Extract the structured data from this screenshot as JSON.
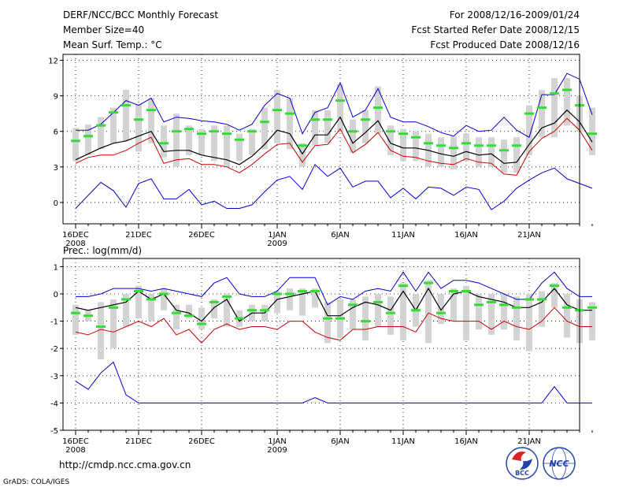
{
  "header": {
    "title": "DERF/NCC/BCC Monthly Forecast",
    "member_size": "Member Size=40",
    "variable": "Mean Surf. Temp.: °C",
    "period": "For 2008/12/16-2009/01/24",
    "fcst_started": "Fcst Started Refer Date 2008/12/15",
    "fcst_produced": "Fcst Produced Date 2008/12/16"
  },
  "precip_label": "Prec.: log(mm/d)",
  "footer": {
    "url": "http://cmdp.ncc.cma.gov.cn",
    "credit": "GrADS: COLA/IGES",
    "logo_bcc": "BCC",
    "logo_ncc": "NCC"
  },
  "colors": {
    "max": "#0000cc",
    "min": "#cc0000",
    "mean": "#000000",
    "spread": "#d3d3d3",
    "obs": "#33dd33"
  },
  "chart_data": [
    {
      "type": "line",
      "title": "Mean Surf. Temp.: °C",
      "x_labels": [
        {
          "day": 0,
          "label": "16DEC",
          "sub": "2008"
        },
        {
          "day": 5,
          "label": "21DEC",
          "sub": ""
        },
        {
          "day": 10,
          "label": "26DEC",
          "sub": ""
        },
        {
          "day": 16,
          "label": "1JAN",
          "sub": "2009"
        },
        {
          "day": 21,
          "label": "6JAN",
          "sub": ""
        },
        {
          "day": 26,
          "label": "11JAN",
          "sub": ""
        },
        {
          "day": 31,
          "label": "16JAN",
          "sub": ""
        },
        {
          "day": 36,
          "label": "21JAN",
          "sub": ""
        }
      ],
      "xlim": [
        -1,
        40
      ],
      "ylim": [
        -1.8,
        12.5
      ],
      "yticks": [
        0,
        3,
        6,
        9,
        12
      ],
      "grid": true,
      "series": [
        {
          "name": "max",
          "values": [
            6.1,
            6.1,
            6.6,
            7.6,
            8.6,
            8.2,
            8.8,
            6.8,
            7.2,
            7.1,
            6.9,
            6.8,
            6.6,
            6.1,
            6.6,
            8.2,
            9.2,
            8.8,
            5.8,
            7.6,
            8.0,
            10.1,
            7.2,
            7.8,
            9.6,
            7.2,
            6.8,
            6.8,
            6.4,
            5.9,
            5.6,
            6.5,
            6.0,
            6.1,
            7.2,
            6.1,
            5.5,
            9.1,
            9.1,
            10.9,
            10.4,
            7.4
          ]
        },
        {
          "name": "min",
          "values": [
            3.3,
            3.8,
            4.0,
            4.0,
            4.4,
            5.0,
            5.5,
            3.3,
            3.6,
            3.7,
            3.2,
            3.2,
            3.0,
            2.5,
            3.2,
            4.1,
            4.9,
            5.0,
            3.4,
            4.8,
            4.9,
            6.2,
            4.2,
            4.9,
            5.9,
            4.4,
            3.9,
            3.8,
            3.5,
            3.3,
            3.2,
            3.7,
            3.4,
            3.3,
            2.4,
            2.3,
            4.3,
            5.4,
            6.0,
            7.1,
            6.1,
            4.4
          ]
        },
        {
          "name": "mean",
          "values": [
            3.6,
            4.1,
            4.6,
            5.0,
            5.2,
            5.6,
            6.0,
            4.3,
            4.4,
            4.4,
            4.0,
            3.8,
            3.6,
            3.2,
            3.9,
            4.9,
            6.1,
            5.8,
            4.1,
            5.7,
            5.7,
            7.2,
            5.0,
            5.9,
            6.9,
            5.0,
            4.6,
            4.6,
            4.4,
            4.1,
            3.9,
            4.3,
            4.0,
            4.1,
            3.3,
            3.4,
            4.9,
            6.3,
            6.7,
            7.8,
            6.8,
            5.1
          ]
        },
        {
          "name": "lower",
          "values": [
            -0.5,
            0.6,
            1.7,
            1.0,
            -0.4,
            1.6,
            2.0,
            0.3,
            0.3,
            1.1,
            -0.2,
            0.1,
            -0.5,
            -0.5,
            -0.2,
            0.9,
            1.9,
            2.2,
            1.1,
            3.2,
            2.2,
            2.9,
            1.3,
            1.8,
            1.8,
            0.4,
            1.2,
            0.3,
            1.3,
            1.2,
            0.6,
            1.3,
            1.1,
            -0.6,
            0.1,
            1.2,
            1.9,
            2.5,
            2.9,
            2.0,
            1.6,
            1.2
          ]
        },
        {
          "name": "p25",
          "values": [
            3.5,
            4.0,
            4.5,
            5.0,
            5.2,
            4.3,
            5.0,
            3.8,
            3.0,
            4.0,
            4.0,
            3.5,
            3.0,
            3.5,
            4.0,
            4.5,
            5.0,
            4.5,
            3.0,
            4.8,
            5.0,
            6.0,
            4.2,
            5.0,
            5.8,
            4.0,
            3.5,
            3.5,
            3.0,
            3.0,
            2.8,
            3.5,
            3.0,
            3.0,
            2.5,
            2.5,
            4.0,
            5.5,
            5.5,
            6.5,
            6.0,
            4.0
          ]
        },
        {
          "name": "p75",
          "values": [
            6.3,
            6.6,
            7.2,
            8.0,
            9.5,
            8.3,
            8.8,
            6.5,
            7.5,
            6.5,
            6.2,
            6.5,
            6.5,
            5.8,
            6.2,
            8.0,
            9.5,
            8.8,
            5.0,
            7.8,
            7.8,
            10.0,
            7.0,
            7.8,
            9.8,
            6.5,
            6.2,
            6.0,
            5.8,
            5.5,
            5.6,
            5.8,
            5.5,
            5.5,
            5.3,
            5.5,
            8.2,
            9.5,
            10.5,
            10.5,
            9.0,
            8.0
          ]
        },
        {
          "name": "obs",
          "values": [
            5.2,
            5.6,
            6.5,
            7.6,
            8.2,
            7.0,
            7.8,
            5.0,
            6.0,
            6.2,
            5.8,
            6.0,
            5.8,
            5.3,
            6.0,
            6.8,
            7.8,
            7.5,
            4.8,
            7.0,
            7.0,
            8.6,
            6.0,
            7.0,
            8.0,
            6.0,
            5.8,
            5.5,
            5.0,
            4.8,
            4.6,
            5.0,
            4.8,
            4.8,
            4.4,
            4.8,
            7.5,
            8.0,
            9.2,
            9.5,
            8.2,
            5.8
          ]
        }
      ]
    },
    {
      "type": "line",
      "title": "Prec.: log(mm/d)",
      "x_labels": [
        {
          "day": 0,
          "label": "16DEC",
          "sub": "2008"
        },
        {
          "day": 5,
          "label": "21DEC",
          "sub": ""
        },
        {
          "day": 10,
          "label": "26DEC",
          "sub": ""
        },
        {
          "day": 16,
          "label": "1JAN",
          "sub": "2009"
        },
        {
          "day": 21,
          "label": "6JAN",
          "sub": ""
        },
        {
          "day": 26,
          "label": "11JAN",
          "sub": ""
        },
        {
          "day": 31,
          "label": "16JAN",
          "sub": ""
        },
        {
          "day": 36,
          "label": "21JAN",
          "sub": ""
        }
      ],
      "xlim": [
        -1,
        40
      ],
      "ylim": [
        -5,
        1.3
      ],
      "yticks": [
        -5,
        -4,
        -3,
        -2,
        -1,
        0,
        1
      ],
      "grid": true,
      "series": [
        {
          "name": "max",
          "values": [
            -0.1,
            -0.1,
            0.0,
            0.2,
            0.2,
            0.2,
            0.1,
            0.2,
            0.1,
            0.0,
            -0.1,
            0.4,
            0.6,
            0.0,
            -0.1,
            -0.1,
            0.1,
            0.6,
            0.6,
            0.6,
            -0.4,
            -0.1,
            -0.2,
            0.1,
            0.2,
            0.1,
            0.8,
            0.1,
            0.8,
            0.2,
            0.5,
            0.5,
            0.4,
            0.2,
            0.0,
            -0.2,
            -0.2,
            0.4,
            0.8,
            0.2,
            -0.1,
            -0.1
          ]
        },
        {
          "name": "min",
          "values": [
            -1.4,
            -1.5,
            -1.3,
            -1.4,
            -1.2,
            -1.0,
            -1.2,
            -0.9,
            -1.5,
            -1.3,
            -1.8,
            -1.3,
            -1.1,
            -1.3,
            -1.2,
            -1.2,
            -1.3,
            -1.0,
            -1.0,
            -1.4,
            -1.6,
            -1.7,
            -1.3,
            -1.3,
            -1.2,
            -1.2,
            -1.2,
            -1.4,
            -0.7,
            -0.9,
            -1.0,
            -1.0,
            -1.0,
            -1.3,
            -1.0,
            -1.2,
            -1.3,
            -1.0,
            -0.5,
            -1.0,
            -1.2,
            -1.2
          ]
        },
        {
          "name": "mean",
          "values": [
            -0.5,
            -0.6,
            -0.5,
            -0.4,
            -0.3,
            0.1,
            -0.2,
            0.0,
            -0.6,
            -0.7,
            -1.0,
            -0.5,
            -0.2,
            -1.0,
            -0.7,
            -0.7,
            -0.2,
            -0.1,
            0.0,
            0.1,
            -0.8,
            -0.8,
            -0.5,
            -0.3,
            -0.4,
            -0.6,
            0.1,
            -0.6,
            0.2,
            -0.6,
            0.0,
            0.1,
            -0.1,
            -0.2,
            -0.3,
            -0.5,
            -0.5,
            -0.3,
            0.2,
            -0.4,
            -0.6,
            -0.6
          ]
        },
        {
          "name": "lower",
          "values": [
            -3.2,
            -3.5,
            -2.9,
            -2.5,
            -3.7,
            -4.0,
            -4.0,
            -4.0,
            -4.0,
            -4.0,
            -4.0,
            -4.0,
            -4.0,
            -4.0,
            -4.0,
            -4.0,
            -4.0,
            -4.0,
            -4.0,
            -3.8,
            -4.0,
            -4.0,
            -4.0,
            -4.0,
            -4.0,
            -4.0,
            -4.0,
            -4.0,
            -4.0,
            -4.0,
            -4.0,
            -4.0,
            -4.0,
            -4.0,
            -4.0,
            -4.0,
            -4.0,
            -4.0,
            -3.4,
            -4.0,
            -4.0,
            -4.0
          ]
        },
        {
          "name": "p25",
          "values": [
            -1.5,
            -1.0,
            -2.4,
            -2.0,
            -1.2,
            -0.9,
            -1.0,
            -0.6,
            -1.3,
            -0.9,
            -1.3,
            -0.9,
            -1.2,
            -1.2,
            -1.0,
            -1.0,
            -0.7,
            -0.6,
            -0.8,
            -0.5,
            -1.8,
            -1.6,
            -1.3,
            -1.7,
            -1.2,
            -1.5,
            -1.7,
            -1.2,
            -1.8,
            -1.1,
            -1.0,
            -1.7,
            -1.3,
            -1.5,
            -1.3,
            -1.7,
            -2.1,
            -1.2,
            -0.5,
            -1.6,
            -1.8,
            -1.7
          ]
        },
        {
          "name": "p75",
          "values": [
            -0.4,
            -0.6,
            -0.3,
            -0.2,
            0.0,
            0.3,
            0.0,
            0.2,
            -0.4,
            -0.4,
            -0.5,
            -0.2,
            0.0,
            -0.6,
            -0.4,
            -0.4,
            0.1,
            0.2,
            0.2,
            0.2,
            -0.3,
            -0.2,
            -0.2,
            -0.1,
            0.0,
            -0.1,
            0.4,
            0.0,
            0.5,
            0.0,
            0.2,
            0.3,
            0.0,
            0.0,
            0.0,
            -0.1,
            0.0,
            0.1,
            0.4,
            0.0,
            -0.2,
            -0.3
          ]
        },
        {
          "name": "obs",
          "values": [
            -0.7,
            -0.8,
            -1.2,
            -0.5,
            -0.2,
            0.1,
            -0.2,
            0.0,
            -0.7,
            -0.8,
            -1.1,
            -0.3,
            -0.1,
            -0.9,
            -0.6,
            -0.6,
            0.0,
            0.0,
            0.1,
            0.1,
            -0.9,
            -0.9,
            -0.4,
            -1.0,
            -0.3,
            -0.7,
            0.3,
            -0.6,
            0.4,
            -0.7,
            0.1,
            0.1,
            -0.4,
            -0.3,
            -0.4,
            -0.5,
            -0.2,
            -0.2,
            0.3,
            -0.5,
            -0.6,
            -0.5
          ]
        }
      ]
    }
  ]
}
